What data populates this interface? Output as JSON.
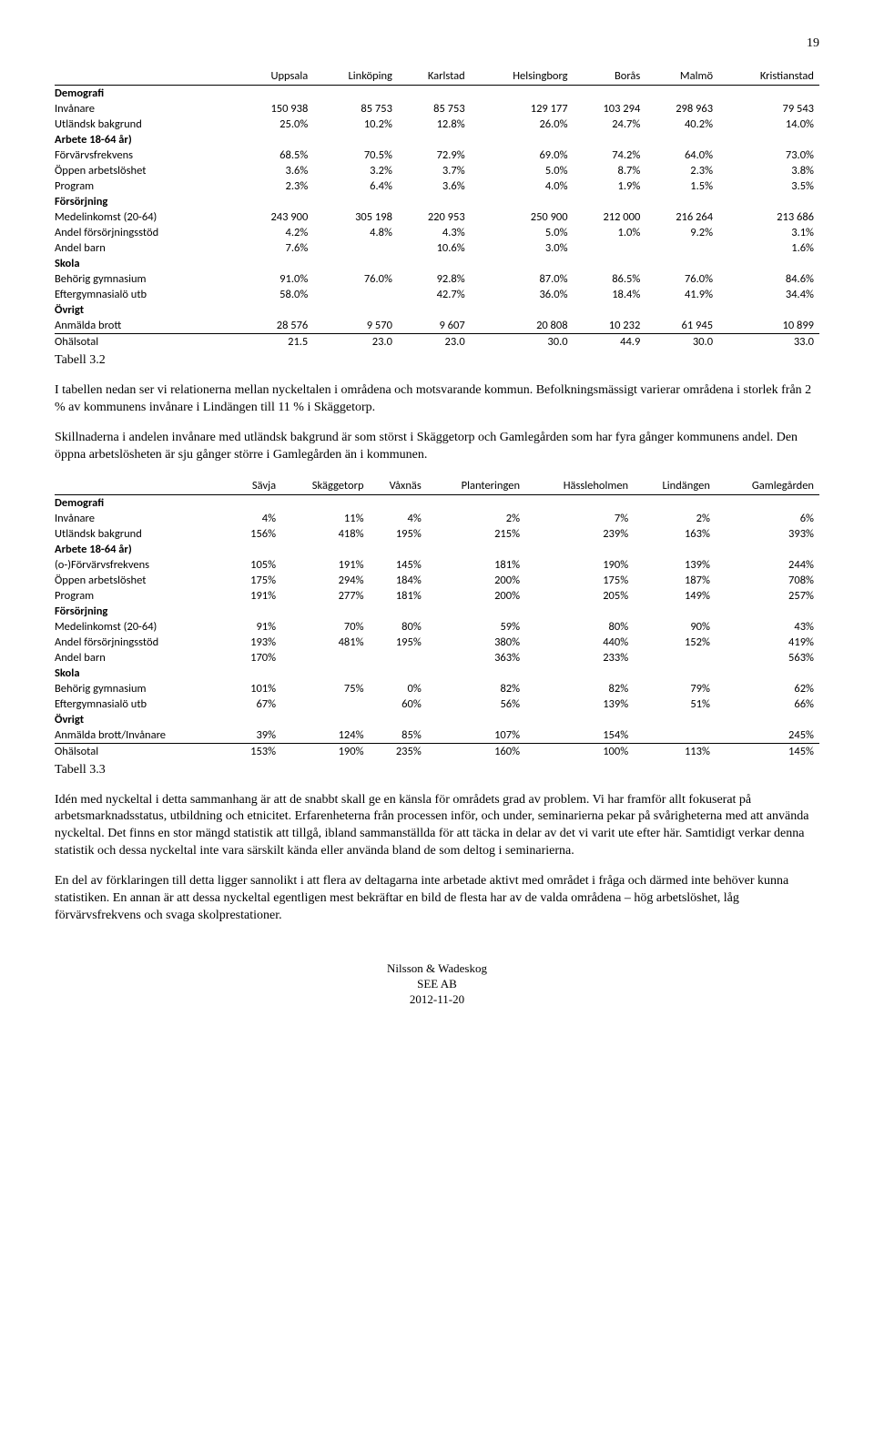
{
  "page_number": "19",
  "table1": {
    "headers": [
      "",
      "Uppsala",
      "Linköping",
      "Karlstad",
      "Helsingborg",
      "Borås",
      "Malmö",
      "Kristianstad"
    ],
    "rows": [
      {
        "section": true,
        "label": "Demografi",
        "vals": [
          "",
          "",
          "",
          "",
          "",
          "",
          ""
        ]
      },
      {
        "label": "Invånare",
        "vals": [
          "150 938",
          "85 753",
          "85 753",
          "129 177",
          "103 294",
          "298 963",
          "79 543"
        ]
      },
      {
        "label": "Utländsk bakgrund",
        "vals": [
          "25.0%",
          "10.2%",
          "12.8%",
          "26.0%",
          "24.7%",
          "40.2%",
          "14.0%"
        ]
      },
      {
        "section": true,
        "label": "Arbete 18-64 år)",
        "vals": [
          "",
          "",
          "",
          "",
          "",
          "",
          ""
        ]
      },
      {
        "label": "Förvärvsfrekvens",
        "vals": [
          "68.5%",
          "70.5%",
          "72.9%",
          "69.0%",
          "74.2%",
          "64.0%",
          "73.0%"
        ]
      },
      {
        "label": "Öppen arbetslöshet",
        "vals": [
          "3.6%",
          "3.2%",
          "3.7%",
          "5.0%",
          "8.7%",
          "2.3%",
          "3.8%"
        ]
      },
      {
        "label": "Program",
        "vals": [
          "2.3%",
          "6.4%",
          "3.6%",
          "4.0%",
          "1.9%",
          "1.5%",
          "3.5%"
        ]
      },
      {
        "section": true,
        "label": "Försörjning",
        "vals": [
          "",
          "",
          "",
          "",
          "",
          "",
          ""
        ]
      },
      {
        "label": "Medelinkomst (20-64)",
        "vals": [
          "243 900",
          "305 198",
          "220 953",
          "250 900",
          "212 000",
          "216 264",
          "213 686"
        ]
      },
      {
        "label": "Andel försörjningsstöd",
        "vals": [
          "4.2%",
          "4.8%",
          "4.3%",
          "5.0%",
          "1.0%",
          "9.2%",
          "3.1%"
        ]
      },
      {
        "label": "Andel barn",
        "vals": [
          "7.6%",
          "",
          "10.6%",
          "3.0%",
          "",
          "",
          "1.6%"
        ]
      },
      {
        "section": true,
        "label": "Skola",
        "vals": [
          "",
          "",
          "",
          "",
          "",
          "",
          ""
        ]
      },
      {
        "label": "Behörig gymnasium",
        "vals": [
          "91.0%",
          "76.0%",
          "92.8%",
          "87.0%",
          "86.5%",
          "76.0%",
          "84.6%"
        ]
      },
      {
        "label": "Eftergymnasialö utb",
        "vals": [
          "58.0%",
          "",
          "42.7%",
          "36.0%",
          "18.4%",
          "41.9%",
          "34.4%"
        ]
      },
      {
        "section": true,
        "label": "Övrigt",
        "vals": [
          "",
          "",
          "",
          "",
          "",
          "",
          ""
        ]
      },
      {
        "label": "Anmälda brott",
        "vals": [
          "28 576",
          "9 570",
          "9 607",
          "20 808",
          "10 232",
          "61 945",
          "10 899"
        ]
      },
      {
        "label": "Ohälsotal",
        "vals": [
          "21.5",
          "23.0",
          "23.0",
          "30.0",
          "44.9",
          "30.0",
          "33.0"
        ],
        "total": true
      }
    ],
    "caption": "Tabell 3.2"
  },
  "para1": "I tabellen nedan ser vi relationerna mellan nyckeltalen i områdena och motsvarande kommun. Befolkningsmässigt varierar områdena i storlek från 2 % av kommunens invånare i Lindängen till 11 % i Skäggetorp.",
  "para2": "Skillnaderna i andelen invånare med utländsk bakgrund är som störst i Skäggetorp och Gamlegården som har fyra gånger kommunens andel. Den öppna arbetslösheten är sju gånger större i Gamlegården än i kommunen.",
  "table2": {
    "headers": [
      "",
      "Sävja",
      "Skäggetorp",
      "Våxnäs",
      "Planteringen",
      "Hässleholmen",
      "Lindängen",
      "Gamlegården"
    ],
    "rows": [
      {
        "section": true,
        "label": "Demografi",
        "vals": [
          "",
          "",
          "",
          "",
          "",
          "",
          ""
        ]
      },
      {
        "label": "Invånare",
        "vals": [
          "4%",
          "11%",
          "4%",
          "2%",
          "7%",
          "2%",
          "6%"
        ]
      },
      {
        "label": "Utländsk bakgrund",
        "vals": [
          "156%",
          "418%",
          "195%",
          "215%",
          "239%",
          "163%",
          "393%"
        ]
      },
      {
        "section": true,
        "label": "Arbete 18-64 år)",
        "vals": [
          "",
          "",
          "",
          "",
          "",
          "",
          ""
        ]
      },
      {
        "label": "(o-)Förvärvsfrekvens",
        "vals": [
          "105%",
          "191%",
          "145%",
          "181%",
          "190%",
          "139%",
          "244%"
        ]
      },
      {
        "label": "Öppen arbetslöshet",
        "vals": [
          "175%",
          "294%",
          "184%",
          "200%",
          "175%",
          "187%",
          "708%"
        ]
      },
      {
        "label": "Program",
        "vals": [
          "191%",
          "277%",
          "181%",
          "200%",
          "205%",
          "149%",
          "257%"
        ]
      },
      {
        "section": true,
        "label": "Försörjning",
        "vals": [
          "",
          "",
          "",
          "",
          "",
          "",
          ""
        ]
      },
      {
        "label": "Medelinkomst (20-64)",
        "vals": [
          "91%",
          "70%",
          "80%",
          "59%",
          "80%",
          "90%",
          "43%"
        ]
      },
      {
        "label": "Andel försörjningsstöd",
        "vals": [
          "193%",
          "481%",
          "195%",
          "380%",
          "440%",
          "152%",
          "419%"
        ]
      },
      {
        "label": "Andel barn",
        "vals": [
          "170%",
          "",
          "",
          "363%",
          "233%",
          "",
          "563%"
        ]
      },
      {
        "section": true,
        "label": "Skola",
        "vals": [
          "",
          "",
          "",
          "",
          "",
          "",
          ""
        ]
      },
      {
        "label": "Behörig gymnasium",
        "vals": [
          "101%",
          "75%",
          "0%",
          "82%",
          "82%",
          "79%",
          "62%"
        ]
      },
      {
        "label": "Eftergymnasialö utb",
        "vals": [
          "67%",
          "",
          "60%",
          "56%",
          "139%",
          "51%",
          "66%"
        ]
      },
      {
        "section": true,
        "label": "Övrigt",
        "vals": [
          "",
          "",
          "",
          "",
          "",
          "",
          ""
        ]
      },
      {
        "label": "Anmälda brott/Invånare",
        "vals": [
          "39%",
          "124%",
          "85%",
          "107%",
          "154%",
          "",
          "245%"
        ]
      },
      {
        "label": "Ohälsotal",
        "vals": [
          "153%",
          "190%",
          "235%",
          "160%",
          "100%",
          "113%",
          "145%"
        ],
        "total": true
      }
    ],
    "caption": "Tabell 3.3"
  },
  "para3": "Idén med nyckeltal i detta sammanhang är att de snabbt skall ge en känsla för områdets grad av problem. Vi har framför allt fokuserat på arbetsmarknadsstatus, utbildning och etnicitet. Erfarenheterna från processen inför, och under, seminarierna pekar på svårigheterna med att använda nyckeltal. Det finns en stor mängd statistik att tillgå, ibland sammanställda för att täcka in delar av det vi varit ute efter här. Samtidigt verkar denna statistik och dessa nyckeltal inte vara särskilt kända eller använda bland de som deltog i seminarierna.",
  "para4": "En del av förklaringen till detta ligger sannolikt i att flera av deltagarna inte arbetade aktivt med området i fråga och därmed inte behöver kunna statistiken. En annan är att dessa nyckeltal egentligen mest bekräftar en bild de flesta har av de valda områdena – hög arbetslöshet, låg förvärvsfrekvens och svaga skolprestationer.",
  "footer": {
    "l1": "Nilsson & Wadeskog",
    "l2": "SEE AB",
    "l3": "2012-11-20"
  }
}
